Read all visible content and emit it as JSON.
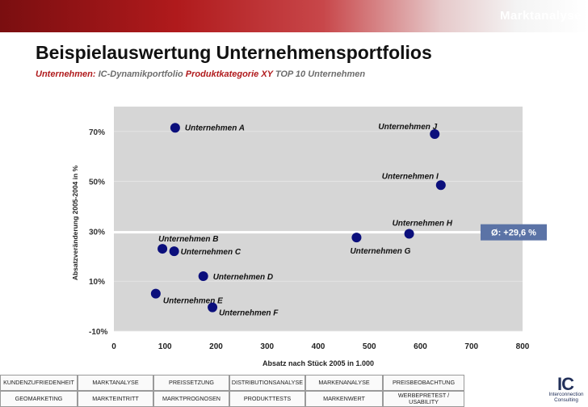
{
  "header": {
    "section_title": "Marktanalyse"
  },
  "page": {
    "title": "Beispielauswertung Unternehmensportfolios",
    "subtitle_parts": [
      {
        "text": "Unternehmen: ",
        "color": "red"
      },
      {
        "text": "IC-Dynamikportfolio ",
        "color": "gray"
      },
      {
        "text": "Produktkategorie XY ",
        "color": "red"
      },
      {
        "text": "TOP 10 Unternehmen",
        "color": "gray"
      }
    ]
  },
  "chart_data": {
    "type": "scatter",
    "title": "",
    "xlabel": "Absatz nach Stück 2005 in 1.000",
    "ylabel": "Absatzveränderung 2005-2004 in %",
    "xlim": [
      0,
      800
    ],
    "ylim": [
      -10,
      80
    ],
    "x_ticks": [
      0,
      100,
      200,
      300,
      400,
      500,
      600,
      700,
      800
    ],
    "y_ticks": [
      -10,
      10,
      30,
      50,
      70
    ],
    "y_tick_labels": [
      "-10%",
      "10%",
      "30%",
      "50%",
      "70%"
    ],
    "grid": true,
    "colors": {
      "point": "#0b0f7c",
      "plot_bg": "#d6d6d6",
      "avg_line": "#ffffff",
      "avg_badge": "#5b73a6"
    },
    "points": [
      {
        "label": "Unternehmen A",
        "x": 120,
        "y": 71.5
      },
      {
        "label": "Unternehmen B",
        "x": 95,
        "y": 23
      },
      {
        "label": "Unternehmen C",
        "x": 118,
        "y": 22
      },
      {
        "label": "Unternehmen D",
        "x": 175,
        "y": 12
      },
      {
        "label": "Unternehmen E",
        "x": 82,
        "y": 5
      },
      {
        "label": "Unternehmen F",
        "x": 193,
        "y": -0.5
      },
      {
        "label": "Unternehmen G",
        "x": 475,
        "y": 27.5
      },
      {
        "label": "Unternehmen H",
        "x": 578,
        "y": 29
      },
      {
        "label": "Unternehmen I",
        "x": 640,
        "y": 48.5
      },
      {
        "label": "Unternehmen J",
        "x": 628,
        "y": 69
      }
    ],
    "reference_line": {
      "y": 29.6,
      "label": "Ø: +29,6 %"
    }
  },
  "nav": {
    "row1": [
      "KUNDENZUFRIEDENHEIT",
      "MARKTANALYSE",
      "PREISSETZUNG",
      "DISTRIBUTIONSANALYSE",
      "MARKENANALYSE",
      "PREISBEOBACHTUNG"
    ],
    "row2": [
      "GEOMARKETING",
      "MARKTEINTRITT",
      "MARKTPROGNOSEN",
      "PRODUKTTESTS",
      "MARKENWERT",
      "WERBEPRETEST / USABILITY"
    ]
  },
  "logo": {
    "mark": "IC",
    "line1": "Interconnection",
    "line2": "Consulting"
  }
}
